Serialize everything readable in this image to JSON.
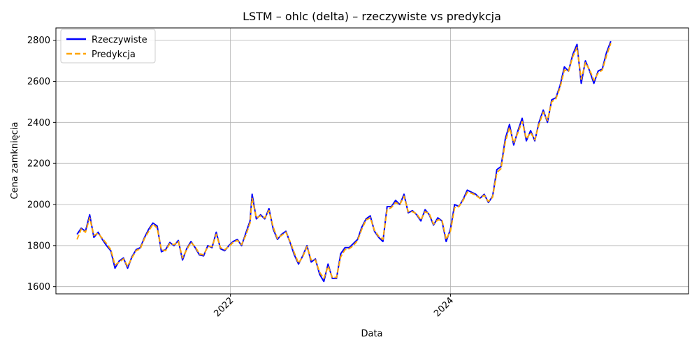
{
  "chart_data": {
    "type": "line",
    "title": "LSTM – ohlc (delta) – rzeczywiste vs predykcja",
    "xlabel": "Data",
    "ylabel": "Cena zamknięcia",
    "xlim": [
      "2020-06-01",
      "2026-03-01"
    ],
    "ylim": [
      1565,
      2860
    ],
    "x_ticks": [
      {
        "date": "2022-01-01",
        "label": "2022"
      },
      {
        "date": "2024-01-01",
        "label": "2024"
      }
    ],
    "y_ticks": [
      1600,
      1800,
      2000,
      2200,
      2400,
      2600,
      2800
    ],
    "grid": true,
    "legend_position": "top-left",
    "series": [
      {
        "name": "Rzeczywiste",
        "color": "#0000ff",
        "style": "solid",
        "points": [
          [
            "2020-08-10",
            1855
          ],
          [
            "2020-08-24",
            1885
          ],
          [
            "2020-09-07",
            1870
          ],
          [
            "2020-09-21",
            1950
          ],
          [
            "2020-10-05",
            1840
          ],
          [
            "2020-10-19",
            1865
          ],
          [
            "2020-11-02",
            1830
          ],
          [
            "2020-11-16",
            1800
          ],
          [
            "2020-11-30",
            1775
          ],
          [
            "2020-12-14",
            1690
          ],
          [
            "2020-12-28",
            1725
          ],
          [
            "2021-01-11",
            1740
          ],
          [
            "2021-01-25",
            1690
          ],
          [
            "2021-02-08",
            1745
          ],
          [
            "2021-02-22",
            1780
          ],
          [
            "2021-03-08",
            1790
          ],
          [
            "2021-03-22",
            1840
          ],
          [
            "2021-04-05",
            1880
          ],
          [
            "2021-04-19",
            1910
          ],
          [
            "2021-05-03",
            1895
          ],
          [
            "2021-05-17",
            1770
          ],
          [
            "2021-05-31",
            1780
          ],
          [
            "2021-06-14",
            1815
          ],
          [
            "2021-06-28",
            1800
          ],
          [
            "2021-07-12",
            1825
          ],
          [
            "2021-07-26",
            1730
          ],
          [
            "2021-08-09",
            1785
          ],
          [
            "2021-08-23",
            1820
          ],
          [
            "2021-09-06",
            1790
          ],
          [
            "2021-09-20",
            1755
          ],
          [
            "2021-10-04",
            1750
          ],
          [
            "2021-10-18",
            1800
          ],
          [
            "2021-11-01",
            1790
          ],
          [
            "2021-11-15",
            1865
          ],
          [
            "2021-11-29",
            1785
          ],
          [
            "2021-12-13",
            1775
          ],
          [
            "2021-12-27",
            1800
          ],
          [
            "2022-01-10",
            1820
          ],
          [
            "2022-01-24",
            1830
          ],
          [
            "2022-02-07",
            1800
          ],
          [
            "2022-02-21",
            1860
          ],
          [
            "2022-03-07",
            1920
          ],
          [
            "2022-03-14",
            2050
          ],
          [
            "2022-03-28",
            1930
          ],
          [
            "2022-04-11",
            1950
          ],
          [
            "2022-04-25",
            1930
          ],
          [
            "2022-05-09",
            1980
          ],
          [
            "2022-05-23",
            1880
          ],
          [
            "2022-06-06",
            1830
          ],
          [
            "2022-06-20",
            1855
          ],
          [
            "2022-07-04",
            1870
          ],
          [
            "2022-07-18",
            1815
          ],
          [
            "2022-08-01",
            1755
          ],
          [
            "2022-08-15",
            1710
          ],
          [
            "2022-08-29",
            1750
          ],
          [
            "2022-09-12",
            1800
          ],
          [
            "2022-09-26",
            1720
          ],
          [
            "2022-10-10",
            1735
          ],
          [
            "2022-10-24",
            1660
          ],
          [
            "2022-11-07",
            1625
          ],
          [
            "2022-11-21",
            1710
          ],
          [
            "2022-12-05",
            1640
          ],
          [
            "2022-12-19",
            1640
          ],
          [
            "2023-01-02",
            1760
          ],
          [
            "2023-01-16",
            1790
          ],
          [
            "2023-01-30",
            1790
          ],
          [
            "2023-02-13",
            1810
          ],
          [
            "2023-02-27",
            1830
          ],
          [
            "2023-03-13",
            1890
          ],
          [
            "2023-03-27",
            1930
          ],
          [
            "2023-04-10",
            1945
          ],
          [
            "2023-04-24",
            1870
          ],
          [
            "2023-05-08",
            1840
          ],
          [
            "2023-05-22",
            1820
          ],
          [
            "2023-06-05",
            1990
          ],
          [
            "2023-06-19",
            1990
          ],
          [
            "2023-07-03",
            2020
          ],
          [
            "2023-07-17",
            2000
          ],
          [
            "2023-07-31",
            2050
          ],
          [
            "2023-08-14",
            1960
          ],
          [
            "2023-08-28",
            1970
          ],
          [
            "2023-09-11",
            1950
          ],
          [
            "2023-09-25",
            1920
          ],
          [
            "2023-10-09",
            1975
          ],
          [
            "2023-10-23",
            1950
          ],
          [
            "2023-11-06",
            1900
          ],
          [
            "2023-11-20",
            1935
          ],
          [
            "2023-12-04",
            1920
          ],
          [
            "2023-12-18",
            1820
          ],
          [
            "2024-01-01",
            1880
          ],
          [
            "2024-01-15",
            2000
          ],
          [
            "2024-01-29",
            1990
          ],
          [
            "2024-02-12",
            2025
          ],
          [
            "2024-02-26",
            2070
          ],
          [
            "2024-03-11",
            2060
          ],
          [
            "2024-03-25",
            2050
          ],
          [
            "2024-04-08",
            2030
          ],
          [
            "2024-04-22",
            2050
          ],
          [
            "2024-05-06",
            2010
          ],
          [
            "2024-05-20",
            2040
          ],
          [
            "2024-06-03",
            2170
          ],
          [
            "2024-06-17",
            2185
          ],
          [
            "2024-07-01",
            2320
          ],
          [
            "2024-07-15",
            2390
          ],
          [
            "2024-07-29",
            2290
          ],
          [
            "2024-08-12",
            2360
          ],
          [
            "2024-08-26",
            2420
          ],
          [
            "2024-09-09",
            2310
          ],
          [
            "2024-09-23",
            2360
          ],
          [
            "2024-10-07",
            2310
          ],
          [
            "2024-10-21",
            2400
          ],
          [
            "2024-11-04",
            2460
          ],
          [
            "2024-11-18",
            2400
          ],
          [
            "2024-12-02",
            2510
          ],
          [
            "2024-12-16",
            2520
          ],
          [
            "2024-12-30",
            2580
          ],
          [
            "2025-01-13",
            2670
          ],
          [
            "2025-01-27",
            2650
          ],
          [
            "2025-02-10",
            2730
          ],
          [
            "2025-02-24",
            2780
          ],
          [
            "2025-03-10",
            2590
          ],
          [
            "2025-03-24",
            2700
          ],
          [
            "2025-04-07",
            2650
          ],
          [
            "2025-04-21",
            2590
          ],
          [
            "2025-05-05",
            2650
          ],
          [
            "2025-05-19",
            2660
          ],
          [
            "2025-06-02",
            2740
          ],
          [
            "2025-06-16",
            2795
          ]
        ]
      },
      {
        "name": "Predykcja",
        "color": "#ffa500",
        "style": "dashed",
        "points": [
          [
            "2020-08-10",
            1830
          ],
          [
            "2020-08-24",
            1880
          ],
          [
            "2020-09-07",
            1865
          ],
          [
            "2020-09-21",
            1935
          ],
          [
            "2020-10-05",
            1850
          ],
          [
            "2020-10-19",
            1860
          ],
          [
            "2020-11-02",
            1835
          ],
          [
            "2020-11-16",
            1810
          ],
          [
            "2020-11-30",
            1780
          ],
          [
            "2020-12-14",
            1705
          ],
          [
            "2020-12-28",
            1720
          ],
          [
            "2021-01-11",
            1735
          ],
          [
            "2021-01-25",
            1700
          ],
          [
            "2021-02-08",
            1740
          ],
          [
            "2021-02-22",
            1775
          ],
          [
            "2021-03-08",
            1785
          ],
          [
            "2021-03-22",
            1835
          ],
          [
            "2021-04-05",
            1870
          ],
          [
            "2021-04-19",
            1905
          ],
          [
            "2021-05-03",
            1885
          ],
          [
            "2021-05-17",
            1780
          ],
          [
            "2021-05-31",
            1775
          ],
          [
            "2021-06-14",
            1810
          ],
          [
            "2021-06-28",
            1805
          ],
          [
            "2021-07-12",
            1820
          ],
          [
            "2021-07-26",
            1740
          ],
          [
            "2021-08-09",
            1780
          ],
          [
            "2021-08-23",
            1815
          ],
          [
            "2021-09-06",
            1795
          ],
          [
            "2021-09-20",
            1760
          ],
          [
            "2021-10-04",
            1755
          ],
          [
            "2021-10-18",
            1795
          ],
          [
            "2021-11-01",
            1795
          ],
          [
            "2021-11-15",
            1855
          ],
          [
            "2021-11-29",
            1790
          ],
          [
            "2021-12-13",
            1780
          ],
          [
            "2021-12-27",
            1795
          ],
          [
            "2022-01-10",
            1815
          ],
          [
            "2022-01-24",
            1825
          ],
          [
            "2022-02-07",
            1805
          ],
          [
            "2022-02-21",
            1850
          ],
          [
            "2022-03-07",
            1910
          ],
          [
            "2022-03-14",
            2030
          ],
          [
            "2022-03-28",
            1935
          ],
          [
            "2022-04-11",
            1945
          ],
          [
            "2022-04-25",
            1935
          ],
          [
            "2022-05-09",
            1970
          ],
          [
            "2022-05-23",
            1890
          ],
          [
            "2022-06-06",
            1835
          ],
          [
            "2022-06-20",
            1850
          ],
          [
            "2022-07-04",
            1865
          ],
          [
            "2022-07-18",
            1820
          ],
          [
            "2022-08-01",
            1765
          ],
          [
            "2022-08-15",
            1715
          ],
          [
            "2022-08-29",
            1745
          ],
          [
            "2022-09-12",
            1795
          ],
          [
            "2022-09-26",
            1730
          ],
          [
            "2022-10-10",
            1730
          ],
          [
            "2022-10-24",
            1670
          ],
          [
            "2022-11-07",
            1640
          ],
          [
            "2022-11-21",
            1700
          ],
          [
            "2022-12-05",
            1645
          ],
          [
            "2022-12-19",
            1645
          ],
          [
            "2023-01-02",
            1745
          ],
          [
            "2023-01-16",
            1780
          ],
          [
            "2023-01-30",
            1785
          ],
          [
            "2023-02-13",
            1800
          ],
          [
            "2023-02-27",
            1825
          ],
          [
            "2023-03-13",
            1880
          ],
          [
            "2023-03-27",
            1925
          ],
          [
            "2023-04-10",
            1935
          ],
          [
            "2023-04-24",
            1875
          ],
          [
            "2023-05-08",
            1845
          ],
          [
            "2023-05-22",
            1830
          ],
          [
            "2023-06-05",
            1975
          ],
          [
            "2023-06-19",
            1985
          ],
          [
            "2023-07-03",
            2010
          ],
          [
            "2023-07-17",
            2000
          ],
          [
            "2023-07-31",
            2040
          ],
          [
            "2023-08-14",
            1965
          ],
          [
            "2023-08-28",
            1965
          ],
          [
            "2023-09-11",
            1955
          ],
          [
            "2023-09-25",
            1925
          ],
          [
            "2023-10-09",
            1965
          ],
          [
            "2023-10-23",
            1955
          ],
          [
            "2023-11-06",
            1905
          ],
          [
            "2023-11-20",
            1925
          ],
          [
            "2023-12-04",
            1925
          ],
          [
            "2023-12-18",
            1830
          ],
          [
            "2024-01-01",
            1870
          ],
          [
            "2024-01-15",
            1985
          ],
          [
            "2024-01-29",
            1990
          ],
          [
            "2024-02-12",
            2020
          ],
          [
            "2024-02-26",
            2060
          ],
          [
            "2024-03-11",
            2055
          ],
          [
            "2024-03-25",
            2045
          ],
          [
            "2024-04-08",
            2030
          ],
          [
            "2024-04-22",
            2045
          ],
          [
            "2024-05-06",
            2015
          ],
          [
            "2024-05-20",
            2035
          ],
          [
            "2024-06-03",
            2155
          ],
          [
            "2024-06-17",
            2175
          ],
          [
            "2024-07-01",
            2305
          ],
          [
            "2024-07-15",
            2375
          ],
          [
            "2024-07-29",
            2300
          ],
          [
            "2024-08-12",
            2350
          ],
          [
            "2024-08-26",
            2405
          ],
          [
            "2024-09-09",
            2320
          ],
          [
            "2024-09-23",
            2350
          ],
          [
            "2024-10-07",
            2315
          ],
          [
            "2024-10-21",
            2390
          ],
          [
            "2024-11-04",
            2450
          ],
          [
            "2024-11-18",
            2410
          ],
          [
            "2024-12-02",
            2500
          ],
          [
            "2024-12-16",
            2515
          ],
          [
            "2024-12-30",
            2570
          ],
          [
            "2025-01-13",
            2655
          ],
          [
            "2025-01-27",
            2650
          ],
          [
            "2025-02-10",
            2720
          ],
          [
            "2025-02-24",
            2765
          ],
          [
            "2025-03-10",
            2610
          ],
          [
            "2025-03-24",
            2690
          ],
          [
            "2025-04-07",
            2655
          ],
          [
            "2025-04-21",
            2605
          ],
          [
            "2025-05-05",
            2640
          ],
          [
            "2025-05-19",
            2655
          ],
          [
            "2025-06-02",
            2725
          ],
          [
            "2025-06-16",
            2785
          ]
        ]
      }
    ]
  }
}
